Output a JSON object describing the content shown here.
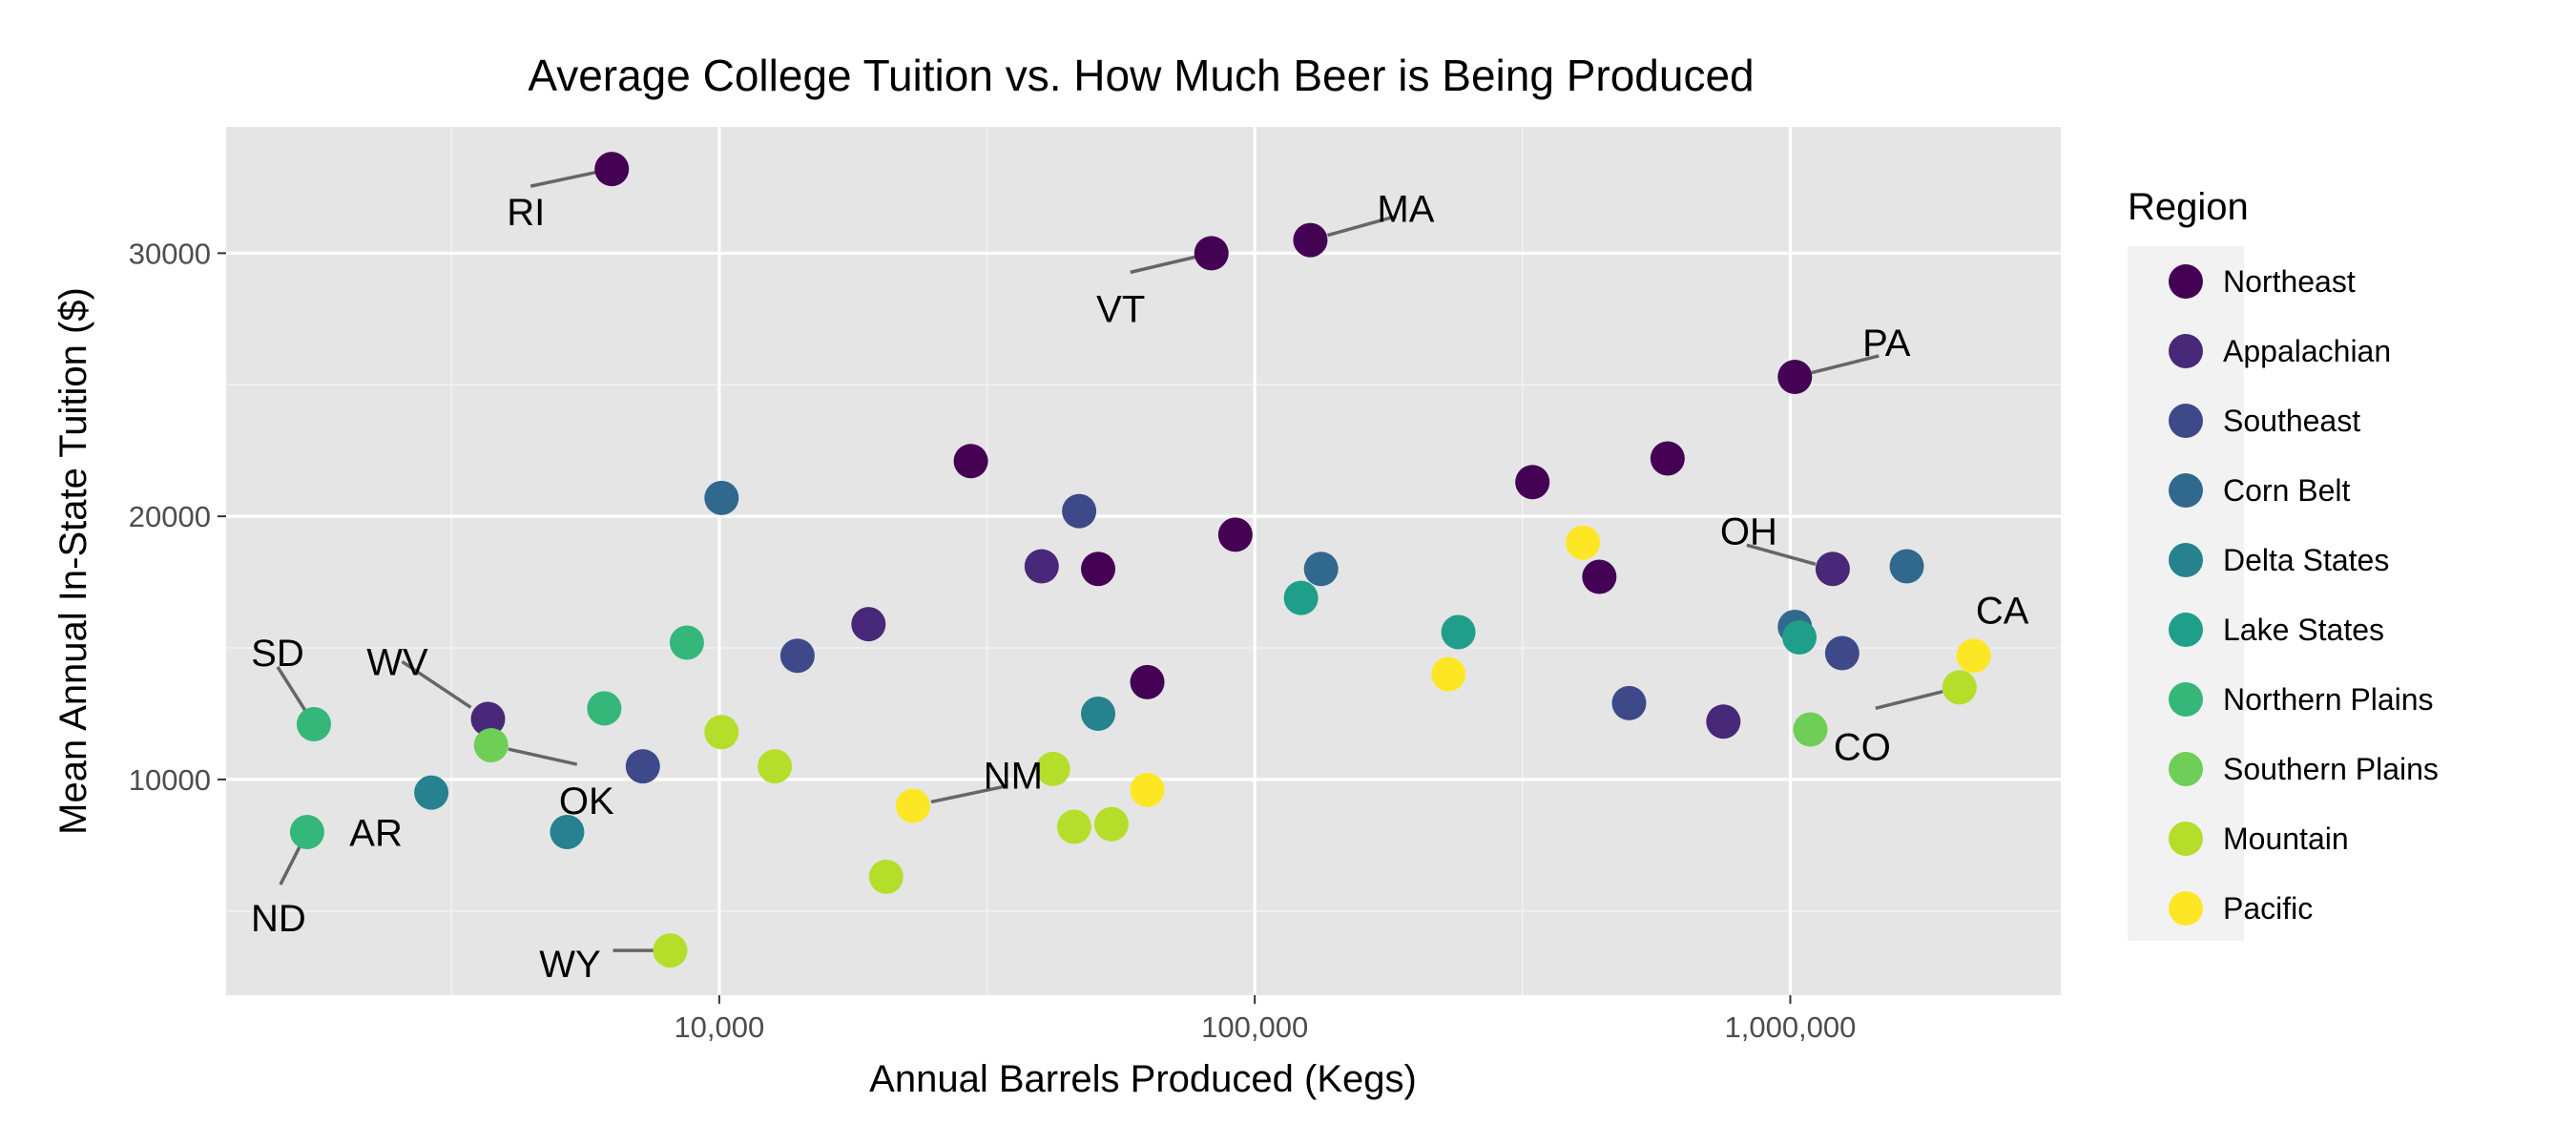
{
  "chart_data": {
    "type": "scatter",
    "title": "Average College Tuition vs. How Much Beer is Being Produced",
    "xlabel": "Annual Barrels Produced (Kegs)",
    "ylabel": "Mean Annual In-State Tuition ($)",
    "x_scale": "log10",
    "xlim": [
      1200,
      3200000
    ],
    "ylim": [
      1800,
      34800
    ],
    "x_ticks": [
      {
        "value": 10000,
        "label": "10,000"
      },
      {
        "value": 100000,
        "label": "100,000"
      },
      {
        "value": 1000000,
        "label": "1,000,000"
      }
    ],
    "x_minor_ticks": [
      3162,
      31623,
      316228
    ],
    "y_ticks": [
      {
        "value": 10000,
        "label": "10000"
      },
      {
        "value": 20000,
        "label": "20000"
      },
      {
        "value": 30000,
        "label": "30000"
      }
    ],
    "y_minor_ticks": [
      5000,
      15000,
      25000
    ],
    "grid": true,
    "legend": {
      "title": "Region",
      "position": "right"
    },
    "series": [
      {
        "name": "Northeast",
        "color": "#440154",
        "points": [
          {
            "x": 6300,
            "y": 33200,
            "label": "RI"
          },
          {
            "x": 83000,
            "y": 30000,
            "label": "VT"
          },
          {
            "x": 127000,
            "y": 30500,
            "label": "MA"
          },
          {
            "x": 1020000,
            "y": 25300,
            "label": "PA"
          },
          {
            "x": 29500,
            "y": 22100
          },
          {
            "x": 92000,
            "y": 19300
          },
          {
            "x": 51000,
            "y": 18000
          },
          {
            "x": 63000,
            "y": 13700
          },
          {
            "x": 330000,
            "y": 21300
          },
          {
            "x": 590000,
            "y": 22200
          },
          {
            "x": 440000,
            "y": 17700
          }
        ]
      },
      {
        "name": "Appalachian",
        "color": "#482878",
        "points": [
          {
            "x": 3700,
            "y": 12300,
            "label": "WV"
          },
          {
            "x": 19000,
            "y": 15900
          },
          {
            "x": 40000,
            "y": 18100
          },
          {
            "x": 750000,
            "y": 12200
          },
          {
            "x": 1200000,
            "y": 18000,
            "label": "OH"
          }
        ]
      },
      {
        "name": "Southeast",
        "color": "#3e4989",
        "points": [
          {
            "x": 7200,
            "y": 10500
          },
          {
            "x": 14000,
            "y": 14700
          },
          {
            "x": 47000,
            "y": 20200
          },
          {
            "x": 500000,
            "y": 12900
          },
          {
            "x": 1250000,
            "y": 14800
          }
        ]
      },
      {
        "name": "Corn Belt",
        "color": "#31688e",
        "points": [
          {
            "x": 10100,
            "y": 20700
          },
          {
            "x": 133000,
            "y": 18000
          },
          {
            "x": 1020000,
            "y": 15800
          },
          {
            "x": 1650000,
            "y": 18100
          }
        ]
      },
      {
        "name": "Delta States",
        "color": "#26828e",
        "points": [
          {
            "x": 2900,
            "y": 9500,
            "label": "AR"
          },
          {
            "x": 5200,
            "y": 8000
          },
          {
            "x": 51000,
            "y": 12500
          }
        ]
      },
      {
        "name": "Lake States",
        "color": "#1f9e89",
        "points": [
          {
            "x": 122000,
            "y": 16900
          },
          {
            "x": 240000,
            "y": 15600
          },
          {
            "x": 1040000,
            "y": 15400
          }
        ]
      },
      {
        "name": "Northern Plains",
        "color": "#35b779",
        "points": [
          {
            "x": 1750,
            "y": 12100,
            "label": "SD"
          },
          {
            "x": 1700,
            "y": 8000,
            "label": "ND"
          },
          {
            "x": 6100,
            "y": 12700
          },
          {
            "x": 8700,
            "y": 15200
          }
        ]
      },
      {
        "name": "Southern Plains",
        "color": "#6ece58",
        "points": [
          {
            "x": 3750,
            "y": 11300,
            "label": "OK"
          },
          {
            "x": 1090000,
            "y": 11900
          }
        ]
      },
      {
        "name": "Mountain",
        "color": "#b5de2b",
        "points": [
          {
            "x": 8100,
            "y": 3500,
            "label": "WY"
          },
          {
            "x": 10100,
            "y": 11800
          },
          {
            "x": 12700,
            "y": 10500
          },
          {
            "x": 20500,
            "y": 6300
          },
          {
            "x": 42000,
            "y": 10400
          },
          {
            "x": 46000,
            "y": 8200
          },
          {
            "x": 54000,
            "y": 8300
          },
          {
            "x": 2070000,
            "y": 13500,
            "label": "CO"
          }
        ]
      },
      {
        "name": "Pacific",
        "color": "#fde725",
        "points": [
          {
            "x": 23000,
            "y": 9000,
            "label": "NM"
          },
          {
            "x": 63000,
            "y": 9600
          },
          {
            "x": 230000,
            "y": 14000
          },
          {
            "x": 410000,
            "y": 19000
          },
          {
            "x": 2200000,
            "y": 14700,
            "label": "CA"
          }
        ]
      }
    ]
  }
}
